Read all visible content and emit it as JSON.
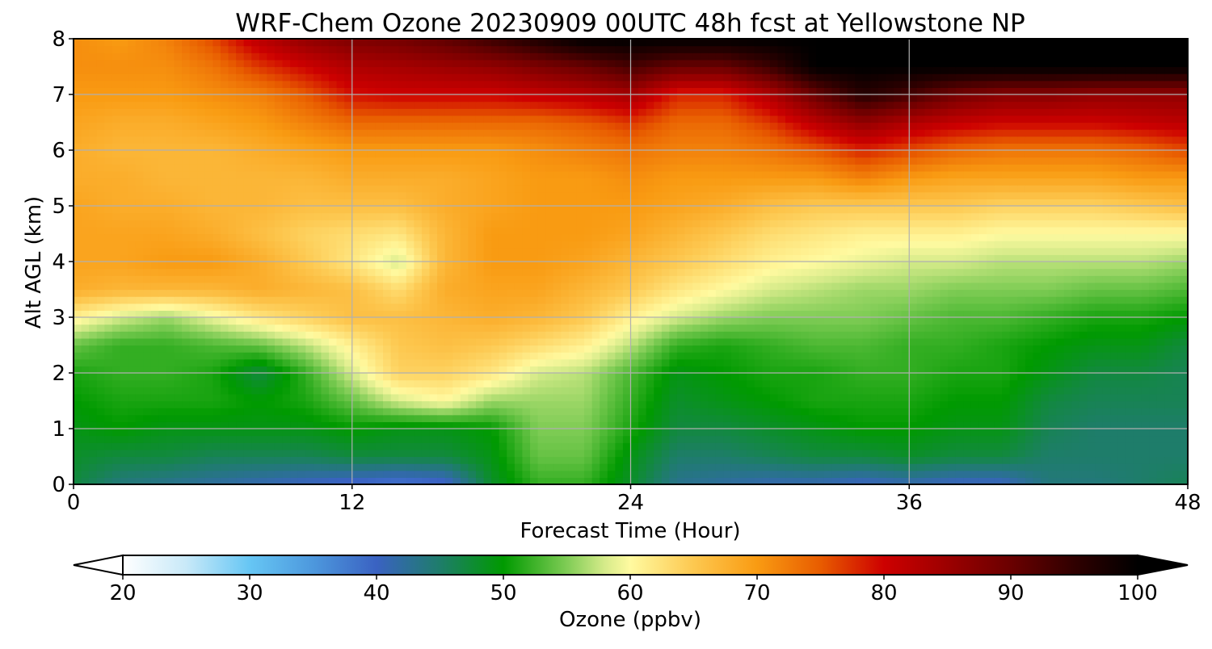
{
  "chart_data": {
    "type": "heatmap",
    "title": "WRF-Chem Ozone  20230909 00UTC 48h fcst at Yellowstone NP",
    "xlabel": "Forecast Time (Hour)",
    "ylabel": "Alt AGL (km)",
    "xlim": [
      0,
      48
    ],
    "ylim": [
      0,
      8
    ],
    "x_ticks": [
      0,
      12,
      24,
      36,
      48
    ],
    "y_ticks": [
      0,
      1,
      2,
      3,
      4,
      5,
      6,
      7,
      8
    ],
    "grid": true,
    "colorbar": {
      "label": "Ozone  (ppbv)",
      "orientation": "horizontal",
      "placement": "bottom",
      "min": 20,
      "max": 100,
      "ticks": [
        20,
        30,
        40,
        50,
        60,
        70,
        80,
        90,
        100
      ],
      "extend": "both",
      "stops": [
        {
          "v": 20,
          "c": "#ffffff"
        },
        {
          "v": 25,
          "c": "#c8e9f8"
        },
        {
          "v": 30,
          "c": "#66c6f4"
        },
        {
          "v": 35,
          "c": "#4d98dd"
        },
        {
          "v": 40,
          "c": "#3a62c2"
        },
        {
          "v": 45,
          "c": "#1e7d6a"
        },
        {
          "v": 50,
          "c": "#009a00"
        },
        {
          "v": 55,
          "c": "#7fcc55"
        },
        {
          "v": 58,
          "c": "#d6eb8a"
        },
        {
          "v": 60,
          "c": "#fffaa0"
        },
        {
          "v": 65,
          "c": "#fdc850"
        },
        {
          "v": 70,
          "c": "#f99b12"
        },
        {
          "v": 75,
          "c": "#e85c00"
        },
        {
          "v": 80,
          "c": "#cd0000"
        },
        {
          "v": 85,
          "c": "#9c0000"
        },
        {
          "v": 90,
          "c": "#6a0000"
        },
        {
          "v": 95,
          "c": "#300000"
        },
        {
          "v": 100,
          "c": "#000000"
        }
      ]
    },
    "x": [
      0,
      2,
      4,
      6,
      8,
      10,
      12,
      14,
      16,
      18,
      20,
      22,
      24,
      26,
      28,
      30,
      32,
      34,
      36,
      38,
      40,
      42,
      44,
      46,
      48
    ],
    "y": [
      0,
      0.5,
      1,
      1.5,
      2,
      2.5,
      3,
      3.5,
      4,
      4.5,
      5,
      5.5,
      6,
      6.5,
      7,
      7.5,
      8
    ],
    "z": [
      [
        47,
        44,
        43,
        42,
        41,
        40,
        39,
        38,
        39,
        48,
        52,
        52,
        48,
        43,
        42,
        41,
        41,
        40,
        41,
        40,
        40,
        44,
        44,
        45,
        46
      ],
      [
        48,
        47,
        47,
        46,
        46,
        46,
        47,
        47,
        47,
        49,
        54,
        54,
        49,
        45,
        45,
        46,
        47,
        47,
        48,
        47,
        47,
        45,
        45,
        45,
        45
      ],
      [
        49,
        50,
        49,
        49,
        49,
        49,
        50,
        49,
        49,
        50,
        55,
        55,
        51,
        47,
        47,
        48,
        49,
        50,
        50,
        49,
        49,
        46,
        45,
        45,
        45
      ],
      [
        50,
        51,
        51,
        51,
        50,
        51,
        54,
        58,
        60,
        56,
        56,
        56,
        52,
        48,
        49,
        50,
        51,
        51,
        51,
        50,
        50,
        47,
        46,
        46,
        46
      ],
      [
        51,
        52,
        52,
        51,
        47,
        52,
        58,
        64,
        64,
        62,
        58,
        57,
        53,
        49,
        50,
        51,
        51,
        52,
        52,
        51,
        51,
        49,
        47,
        47,
        46
      ],
      [
        54,
        52,
        52,
        53,
        54,
        57,
        61,
        65,
        66,
        65,
        63,
        61,
        57,
        52,
        51,
        52,
        53,
        53,
        52,
        52,
        51,
        50,
        49,
        49,
        47
      ],
      [
        61,
        58,
        56,
        59,
        62,
        64,
        66,
        66,
        67,
        68,
        67,
        65,
        61,
        58,
        56,
        55,
        55,
        55,
        54,
        53,
        53,
        52,
        51,
        51,
        50
      ],
      [
        68,
        67,
        67,
        67,
        68,
        67,
        66,
        63,
        68,
        69,
        69,
        67,
        65,
        62,
        60,
        58,
        57,
        56,
        56,
        55,
        55,
        55,
        54,
        54,
        53
      ],
      [
        69,
        69,
        70,
        70,
        68,
        65,
        62,
        58,
        67,
        70,
        70,
        69,
        67,
        65,
        63,
        61,
        60,
        59,
        58,
        58,
        57,
        57,
        57,
        57,
        56
      ],
      [
        69,
        69,
        69,
        68,
        66,
        64,
        63,
        62,
        67,
        70,
        70,
        70,
        69,
        67,
        65,
        63,
        62,
        61,
        61,
        61,
        60,
        60,
        60,
        60,
        60
      ],
      [
        69,
        68,
        68,
        67,
        67,
        66,
        66,
        66,
        68,
        69,
        70,
        70,
        70,
        69,
        68,
        66,
        65,
        65,
        65,
        65,
        64,
        64,
        64,
        65,
        66
      ],
      [
        68,
        68,
        67,
        67,
        67,
        67,
        68,
        68,
        68,
        69,
        70,
        70,
        71,
        70,
        70,
        70,
        70,
        72,
        70,
        69,
        69,
        69,
        69,
        70,
        70
      ],
      [
        68,
        67,
        67,
        67,
        68,
        69,
        70,
        70,
        70,
        70,
        71,
        72,
        73,
        72,
        72,
        73,
        75,
        78,
        76,
        74,
        73,
        73,
        73,
        74,
        76
      ],
      [
        69,
        68,
        68,
        69,
        70,
        72,
        74,
        74,
        74,
        74,
        74,
        75,
        77,
        74,
        74,
        77,
        82,
        86,
        83,
        81,
        80,
        80,
        80,
        81,
        82
      ],
      [
        70,
        70,
        70,
        71,
        72,
        75,
        79,
        80,
        80,
        80,
        81,
        82,
        84,
        78,
        78,
        83,
        90,
        96,
        93,
        89,
        87,
        87,
        86,
        86,
        86
      ],
      [
        71,
        71,
        71,
        73,
        77,
        80,
        83,
        84,
        85,
        86,
        88,
        90,
        93,
        90,
        90,
        94,
        100,
        100,
        100,
        100,
        100,
        100,
        100,
        100,
        100
      ],
      [
        71,
        70,
        72,
        76,
        82,
        86,
        88,
        89,
        91,
        94,
        97,
        100,
        100,
        100,
        100,
        100,
        100,
        100,
        100,
        100,
        100,
        100,
        100,
        100,
        100
      ]
    ]
  }
}
